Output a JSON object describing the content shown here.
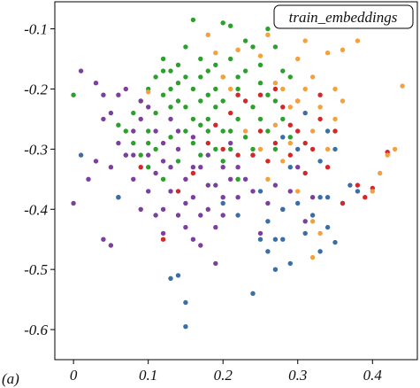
{
  "chart_data": {
    "type": "scatter",
    "panel_label": "(a)",
    "legend": {
      "label": "train_embeddings",
      "placement": "top-right"
    },
    "xlim": [
      -0.025,
      0.46
    ],
    "ylim": [
      -0.65,
      -0.055
    ],
    "y_inverted": true,
    "x_ticks": [
      0,
      0.1,
      0.2,
      0.3,
      0.4
    ],
    "x_tick_labels": [
      "0",
      "0.1",
      "0.2",
      "0.3",
      "0.4"
    ],
    "y_ticks": [
      -0.1,
      -0.2,
      -0.3,
      -0.4,
      -0.5,
      -0.6
    ],
    "y_tick_labels": [
      "-0.1",
      "-0.2",
      "-0.3",
      "-0.4",
      "-0.5",
      "-0.6"
    ],
    "grid": false,
    "colors": {
      "green": "#2ca02c",
      "purple": "#7b3f9e",
      "blue": "#3a6ea5",
      "red": "#d62728",
      "orange": "#f5a03a"
    },
    "series": [
      {
        "color": "#2ca02c",
        "points": [
          [
            0.0,
            -0.21
          ],
          [
            0.1,
            -0.2
          ],
          [
            0.11,
            -0.18
          ],
          [
            0.12,
            -0.17
          ],
          [
            0.12,
            -0.15
          ],
          [
            0.13,
            -0.17
          ],
          [
            0.13,
            -0.2
          ],
          [
            0.14,
            -0.19
          ],
          [
            0.14,
            -0.22
          ],
          [
            0.15,
            -0.13
          ],
          [
            0.15,
            -0.18
          ],
          [
            0.16,
            -0.085
          ],
          [
            0.16,
            -0.2
          ],
          [
            0.17,
            -0.15
          ],
          [
            0.17,
            -0.22
          ],
          [
            0.18,
            -0.17
          ],
          [
            0.18,
            -0.25
          ],
          [
            0.19,
            -0.2
          ],
          [
            0.19,
            -0.23
          ],
          [
            0.2,
            -0.09
          ],
          [
            0.2,
            -0.18
          ],
          [
            0.2,
            -0.22
          ],
          [
            0.21,
            -0.095
          ],
          [
            0.21,
            -0.15
          ],
          [
            0.21,
            -0.27
          ],
          [
            0.22,
            -0.2
          ],
          [
            0.22,
            -0.25
          ],
          [
            0.23,
            -0.12
          ],
          [
            0.23,
            -0.17
          ],
          [
            0.24,
            -0.23
          ],
          [
            0.25,
            -0.19
          ],
          [
            0.26,
            -0.1
          ],
          [
            0.26,
            -0.27
          ],
          [
            0.27,
            -0.22
          ],
          [
            0.28,
            -0.17
          ],
          [
            0.29,
            -0.28
          ],
          [
            0.06,
            -0.26
          ],
          [
            0.07,
            -0.27
          ],
          [
            0.08,
            -0.29
          ],
          [
            0.09,
            -0.31
          ],
          [
            0.1,
            -0.33
          ],
          [
            0.11,
            -0.3
          ],
          [
            0.12,
            -0.35
          ],
          [
            0.13,
            -0.28
          ],
          [
            0.14,
            -0.32
          ],
          [
            0.15,
            -0.27
          ],
          [
            0.16,
            -0.29
          ],
          [
            0.17,
            -0.31
          ],
          [
            0.18,
            -0.27
          ],
          [
            0.19,
            -0.3
          ],
          [
            0.2,
            -0.32
          ],
          [
            0.21,
            -0.3
          ],
          [
            0.22,
            -0.35
          ],
          [
            0.08,
            -0.24
          ],
          [
            0.09,
            -0.22
          ],
          [
            0.1,
            -0.27
          ],
          [
            0.11,
            -0.24
          ],
          [
            0.13,
            -0.23
          ],
          [
            0.15,
            -0.23
          ],
          [
            0.16,
            -0.25
          ],
          [
            0.17,
            -0.26
          ],
          [
            0.18,
            -0.21
          ],
          [
            0.23,
            -0.28
          ],
          [
            0.24,
            -0.3
          ],
          [
            0.25,
            -0.25
          ],
          [
            0.26,
            -0.21
          ],
          [
            0.27,
            -0.3
          ],
          [
            0.12,
            -0.21
          ],
          [
            0.14,
            -0.16
          ],
          [
            0.17,
            -0.18
          ],
          [
            0.19,
            -0.16
          ],
          [
            0.2,
            -0.27
          ],
          [
            0.22,
            -0.18
          ],
          [
            0.24,
            -0.13
          ],
          [
            0.25,
            -0.16
          ],
          [
            0.27,
            -0.13
          ],
          [
            0.28,
            -0.25
          ],
          [
            0.29,
            -0.18
          ],
          [
            0.1,
            -0.29
          ],
          [
            0.07,
            -0.31
          ]
        ]
      },
      {
        "color": "#7b3f9e",
        "points": [
          [
            0.0,
            -0.39
          ],
          [
            0.01,
            -0.17
          ],
          [
            0.02,
            -0.35
          ],
          [
            0.03,
            -0.19
          ],
          [
            0.04,
            -0.25
          ],
          [
            0.04,
            -0.45
          ],
          [
            0.05,
            -0.24
          ],
          [
            0.05,
            -0.33
          ],
          [
            0.06,
            -0.29
          ],
          [
            0.06,
            -0.38
          ],
          [
            0.07,
            -0.2
          ],
          [
            0.07,
            -0.31
          ],
          [
            0.08,
            -0.27
          ],
          [
            0.08,
            -0.35
          ],
          [
            0.09,
            -0.4
          ],
          [
            0.09,
            -0.22
          ],
          [
            0.1,
            -0.31
          ],
          [
            0.1,
            -0.37
          ],
          [
            0.11,
            -0.34
          ],
          [
            0.11,
            -0.27
          ],
          [
            0.12,
            -0.32
          ],
          [
            0.12,
            -0.4
          ],
          [
            0.13,
            -0.25
          ],
          [
            0.13,
            -0.37
          ],
          [
            0.14,
            -0.3
          ],
          [
            0.14,
            -0.41
          ],
          [
            0.15,
            -0.35
          ],
          [
            0.15,
            -0.43
          ],
          [
            0.16,
            -0.28
          ],
          [
            0.16,
            -0.38
          ],
          [
            0.17,
            -0.33
          ],
          [
            0.17,
            -0.46
          ],
          [
            0.18,
            -0.31
          ],
          [
            0.18,
            -0.4
          ],
          [
            0.19,
            -0.36
          ],
          [
            0.19,
            -0.49
          ],
          [
            0.2,
            -0.33
          ],
          [
            0.2,
            -0.41
          ],
          [
            0.21,
            -0.29
          ],
          [
            0.22,
            -0.38
          ],
          [
            0.23,
            -0.35
          ],
          [
            0.24,
            -0.31
          ],
          [
            0.25,
            -0.44
          ],
          [
            0.26,
            -0.39
          ],
          [
            0.27,
            -0.36
          ],
          [
            0.28,
            -0.4
          ],
          [
            0.29,
            -0.37
          ],
          [
            0.3,
            -0.33
          ],
          [
            0.31,
            -0.42
          ],
          [
            0.32,
            -0.38
          ],
          [
            0.04,
            -0.21
          ],
          [
            0.06,
            -0.21
          ],
          [
            0.08,
            -0.31
          ],
          [
            0.1,
            -0.23
          ],
          [
            0.12,
            -0.29
          ],
          [
            0.14,
            -0.27
          ],
          [
            0.16,
            -0.33
          ],
          [
            0.18,
            -0.36
          ],
          [
            0.2,
            -0.38
          ],
          [
            0.22,
            -0.33
          ],
          [
            0.05,
            -0.46
          ],
          [
            0.03,
            -0.32
          ],
          [
            0.11,
            -0.41
          ],
          [
            0.13,
            -0.33
          ],
          [
            0.15,
            -0.39
          ],
          [
            0.17,
            -0.41
          ],
          [
            0.19,
            -0.43
          ],
          [
            0.21,
            -0.35
          ],
          [
            0.24,
            -0.37
          ],
          [
            0.16,
            -0.45
          ],
          [
            0.09,
            -0.25
          ],
          [
            0.12,
            -0.44
          ]
        ]
      },
      {
        "color": "#3a6ea5",
        "points": [
          [
            0.01,
            -0.31
          ],
          [
            0.06,
            -0.38
          ],
          [
            0.13,
            -0.515
          ],
          [
            0.14,
            -0.51
          ],
          [
            0.15,
            -0.555
          ],
          [
            0.15,
            -0.595
          ],
          [
            0.2,
            -0.39
          ],
          [
            0.22,
            -0.41
          ],
          [
            0.24,
            -0.54
          ],
          [
            0.25,
            -0.45
          ],
          [
            0.26,
            -0.42
          ],
          [
            0.26,
            -0.47
          ],
          [
            0.27,
            -0.45
          ],
          [
            0.28,
            -0.4
          ],
          [
            0.28,
            -0.45
          ],
          [
            0.29,
            -0.49
          ],
          [
            0.3,
            -0.39
          ],
          [
            0.31,
            -0.44
          ],
          [
            0.32,
            -0.41
          ],
          [
            0.33,
            -0.38
          ],
          [
            0.34,
            -0.43
          ],
          [
            0.35,
            -0.455
          ],
          [
            0.36,
            -0.39
          ],
          [
            0.37,
            -0.36
          ],
          [
            0.38,
            -0.37
          ],
          [
            0.3,
            -0.3
          ],
          [
            0.31,
            -0.24
          ],
          [
            0.33,
            -0.32
          ],
          [
            0.34,
            -0.27
          ],
          [
            0.35,
            -0.3
          ],
          [
            0.28,
            -0.28
          ],
          [
            0.29,
            -0.33
          ],
          [
            0.27,
            -0.5
          ],
          [
            0.34,
            -0.38
          ],
          [
            0.33,
            -0.47
          ],
          [
            0.25,
            -0.37
          ]
        ]
      },
      {
        "color": "#d62728",
        "points": [
          [
            0.09,
            -0.33
          ],
          [
            0.12,
            -0.45
          ],
          [
            0.19,
            -0.26
          ],
          [
            0.2,
            -0.3
          ],
          [
            0.21,
            -0.24
          ],
          [
            0.22,
            -0.31
          ],
          [
            0.23,
            -0.22
          ],
          [
            0.24,
            -0.31
          ],
          [
            0.25,
            -0.27
          ],
          [
            0.26,
            -0.32
          ],
          [
            0.27,
            -0.29
          ],
          [
            0.28,
            -0.23
          ],
          [
            0.29,
            -0.31
          ],
          [
            0.3,
            -0.27
          ],
          [
            0.31,
            -0.34
          ],
          [
            0.32,
            -0.3
          ],
          [
            0.33,
            -0.25
          ],
          [
            0.34,
            -0.33
          ],
          [
            0.35,
            -0.27
          ],
          [
            0.36,
            -0.39
          ],
          [
            0.38,
            -0.36
          ],
          [
            0.39,
            -0.38
          ],
          [
            0.4,
            -0.365
          ],
          [
            0.42,
            -0.305
          ],
          [
            0.14,
            -0.37
          ],
          [
            0.16,
            -0.34
          ],
          [
            0.27,
            -0.2
          ],
          [
            0.3,
            -0.22
          ],
          [
            0.22,
            -0.21
          ],
          [
            0.18,
            -0.29
          ],
          [
            0.25,
            -0.21
          ],
          [
            0.31,
            -0.29
          ],
          [
            0.33,
            -0.21
          ],
          [
            0.29,
            -0.26
          ]
        ]
      },
      {
        "color": "#f5a03a",
        "points": [
          [
            0.1,
            -0.205
          ],
          [
            0.18,
            -0.11
          ],
          [
            0.19,
            -0.14
          ],
          [
            0.2,
            -0.18
          ],
          [
            0.22,
            -0.135
          ],
          [
            0.25,
            -0.145
          ],
          [
            0.26,
            -0.11
          ],
          [
            0.27,
            -0.19
          ],
          [
            0.28,
            -0.2
          ],
          [
            0.29,
            -0.23
          ],
          [
            0.3,
            -0.15
          ],
          [
            0.3,
            -0.22
          ],
          [
            0.31,
            -0.2
          ],
          [
            0.32,
            -0.18
          ],
          [
            0.33,
            -0.23
          ],
          [
            0.34,
            -0.14
          ],
          [
            0.35,
            -0.2
          ],
          [
            0.36,
            -0.22
          ],
          [
            0.36,
            -0.135
          ],
          [
            0.38,
            -0.12
          ],
          [
            0.4,
            -0.37
          ],
          [
            0.42,
            -0.31
          ],
          [
            0.43,
            -0.3
          ],
          [
            0.44,
            -0.195
          ],
          [
            0.41,
            -0.34
          ],
          [
            0.34,
            -0.3
          ],
          [
            0.35,
            -0.25
          ],
          [
            0.32,
            -0.27
          ],
          [
            0.29,
            -0.29
          ],
          [
            0.28,
            -0.32
          ],
          [
            0.3,
            -0.37
          ],
          [
            0.32,
            -0.42
          ],
          [
            0.33,
            -0.44
          ],
          [
            0.32,
            -0.48
          ],
          [
            0.25,
            -0.3
          ],
          [
            0.23,
            -0.27
          ],
          [
            0.21,
            -0.2
          ],
          [
            0.27,
            -0.26
          ],
          [
            0.26,
            -0.35
          ],
          [
            0.31,
            -0.12
          ]
        ]
      }
    ]
  }
}
